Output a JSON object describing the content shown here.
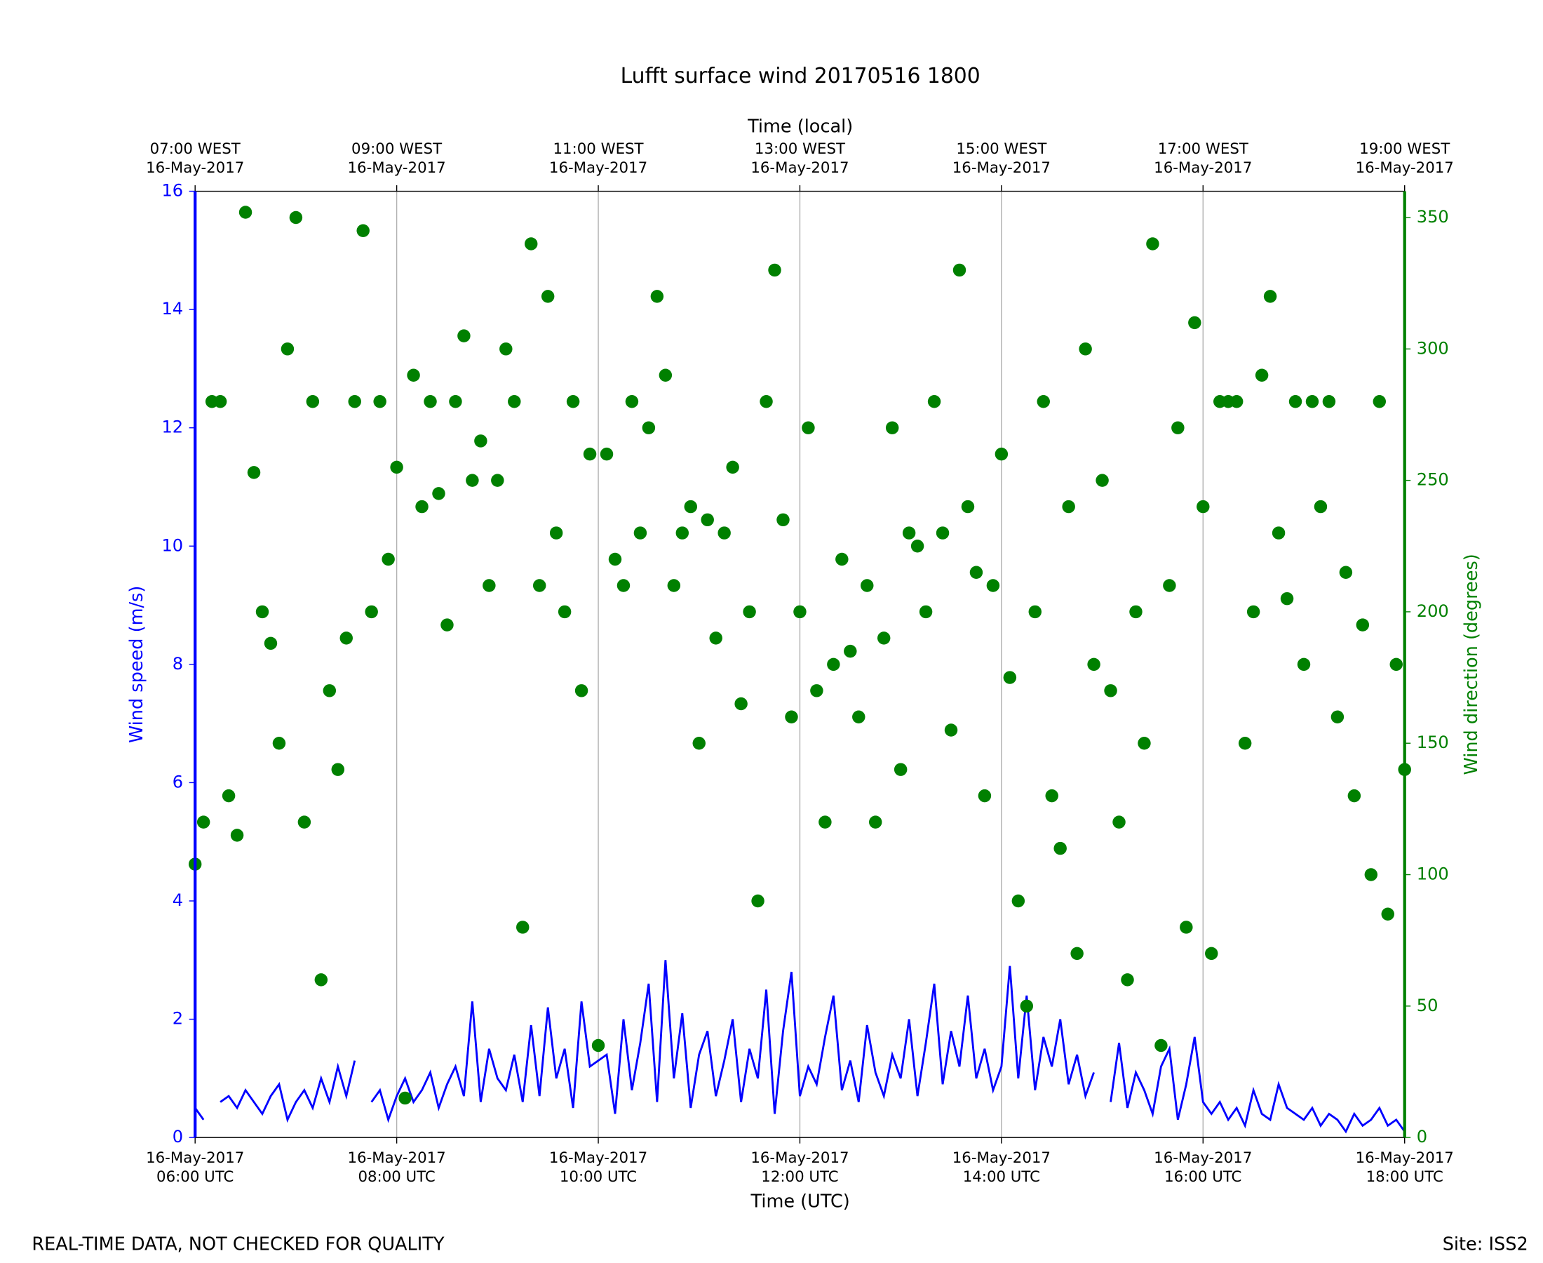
{
  "chart_data": {
    "type": "line",
    "title": "Lufft surface wind 20170516 1800",
    "xlabel": "Time (UTC)",
    "x2label": "Time (local)",
    "ylabel": "Wind speed (m/s)",
    "y2label": "Wind direction (degrees)",
    "footer_left": "REAL-TIME DATA, NOT CHECKED FOR QUALITY",
    "footer_right": "Site: ISS2",
    "grid": true,
    "xlim": [
      "2017-05-16 06:00",
      "2017-05-16 18:00"
    ],
    "xticks": [
      {
        "value": "2017-05-16 06:00",
        "label": [
          "16-May-2017",
          "06:00 UTC"
        ]
      },
      {
        "value": "2017-05-16 08:00",
        "label": [
          "16-May-2017",
          "08:00 UTC"
        ]
      },
      {
        "value": "2017-05-16 10:00",
        "label": [
          "16-May-2017",
          "10:00 UTC"
        ]
      },
      {
        "value": "2017-05-16 12:00",
        "label": [
          "16-May-2017",
          "12:00 UTC"
        ]
      },
      {
        "value": "2017-05-16 14:00",
        "label": [
          "16-May-2017",
          "14:00 UTC"
        ]
      },
      {
        "value": "2017-05-16 16:00",
        "label": [
          "16-May-2017",
          "16:00 UTC"
        ]
      },
      {
        "value": "2017-05-16 18:00",
        "label": [
          "16-May-2017",
          "18:00 UTC"
        ]
      }
    ],
    "x2ticks": [
      {
        "value": "2017-05-16 06:00",
        "label": [
          "07:00 WEST",
          "16-May-2017"
        ]
      },
      {
        "value": "2017-05-16 08:00",
        "label": [
          "09:00 WEST",
          "16-May-2017"
        ]
      },
      {
        "value": "2017-05-16 10:00",
        "label": [
          "11:00 WEST",
          "16-May-2017"
        ]
      },
      {
        "value": "2017-05-16 12:00",
        "label": [
          "13:00 WEST",
          "16-May-2017"
        ]
      },
      {
        "value": "2017-05-16 14:00",
        "label": [
          "15:00 WEST",
          "16-May-2017"
        ]
      },
      {
        "value": "2017-05-16 16:00",
        "label": [
          "17:00 WEST",
          "16-May-2017"
        ]
      },
      {
        "value": "2017-05-16 18:00",
        "label": [
          "19:00 WEST",
          "16-May-2017"
        ]
      }
    ],
    "ylim": [
      0,
      16
    ],
    "yticks": [
      0,
      2,
      4,
      6,
      8,
      10,
      12,
      14,
      16
    ],
    "y2lim": [
      0,
      360
    ],
    "y2ticks": [
      0,
      50,
      100,
      150,
      200,
      250,
      300,
      350
    ],
    "ycolor": "#0000ff",
    "y2color": "#008000",
    "x": [
      "2017-05-16 06:00",
      "2017-05-16 06:05",
      "2017-05-16 06:10",
      "2017-05-16 06:15",
      "2017-05-16 06:20",
      "2017-05-16 06:25",
      "2017-05-16 06:30",
      "2017-05-16 06:35",
      "2017-05-16 06:40",
      "2017-05-16 06:45",
      "2017-05-16 06:50",
      "2017-05-16 06:55",
      "2017-05-16 07:00",
      "2017-05-16 07:05",
      "2017-05-16 07:10",
      "2017-05-16 07:15",
      "2017-05-16 07:20",
      "2017-05-16 07:25",
      "2017-05-16 07:30",
      "2017-05-16 07:35",
      "2017-05-16 07:40",
      "2017-05-16 07:45",
      "2017-05-16 07:50",
      "2017-05-16 07:55",
      "2017-05-16 08:00",
      "2017-05-16 08:05",
      "2017-05-16 08:10",
      "2017-05-16 08:15",
      "2017-05-16 08:20",
      "2017-05-16 08:25",
      "2017-05-16 08:30",
      "2017-05-16 08:35",
      "2017-05-16 08:40",
      "2017-05-16 08:45",
      "2017-05-16 08:50",
      "2017-05-16 08:55",
      "2017-05-16 09:00",
      "2017-05-16 09:05",
      "2017-05-16 09:10",
      "2017-05-16 09:15",
      "2017-05-16 09:20",
      "2017-05-16 09:25",
      "2017-05-16 09:30",
      "2017-05-16 09:35",
      "2017-05-16 09:40",
      "2017-05-16 09:45",
      "2017-05-16 09:50",
      "2017-05-16 09:55",
      "2017-05-16 10:00",
      "2017-05-16 10:05",
      "2017-05-16 10:10",
      "2017-05-16 10:15",
      "2017-05-16 10:20",
      "2017-05-16 10:25",
      "2017-05-16 10:30",
      "2017-05-16 10:35",
      "2017-05-16 10:40",
      "2017-05-16 10:45",
      "2017-05-16 10:50",
      "2017-05-16 10:55",
      "2017-05-16 11:00",
      "2017-05-16 11:05",
      "2017-05-16 11:10",
      "2017-05-16 11:15",
      "2017-05-16 11:20",
      "2017-05-16 11:25",
      "2017-05-16 11:30",
      "2017-05-16 11:35",
      "2017-05-16 11:40",
      "2017-05-16 11:45",
      "2017-05-16 11:50",
      "2017-05-16 11:55",
      "2017-05-16 12:00",
      "2017-05-16 12:05",
      "2017-05-16 12:10",
      "2017-05-16 12:15",
      "2017-05-16 12:20",
      "2017-05-16 12:25",
      "2017-05-16 12:30",
      "2017-05-16 12:35",
      "2017-05-16 12:40",
      "2017-05-16 12:45",
      "2017-05-16 12:50",
      "2017-05-16 12:55",
      "2017-05-16 13:00",
      "2017-05-16 13:05",
      "2017-05-16 13:10",
      "2017-05-16 13:15",
      "2017-05-16 13:20",
      "2017-05-16 13:25",
      "2017-05-16 13:30",
      "2017-05-16 13:35",
      "2017-05-16 13:40",
      "2017-05-16 13:45",
      "2017-05-16 13:50",
      "2017-05-16 13:55",
      "2017-05-16 14:00",
      "2017-05-16 14:05",
      "2017-05-16 14:10",
      "2017-05-16 14:15",
      "2017-05-16 14:20",
      "2017-05-16 14:25",
      "2017-05-16 14:30",
      "2017-05-16 14:35",
      "2017-05-16 14:40",
      "2017-05-16 14:45",
      "2017-05-16 14:50",
      "2017-05-16 14:55",
      "2017-05-16 15:00",
      "2017-05-16 15:05",
      "2017-05-16 15:10",
      "2017-05-16 15:15",
      "2017-05-16 15:20",
      "2017-05-16 15:25",
      "2017-05-16 15:30",
      "2017-05-16 15:35",
      "2017-05-16 15:40",
      "2017-05-16 15:45",
      "2017-05-16 15:50",
      "2017-05-16 15:55",
      "2017-05-16 16:00",
      "2017-05-16 16:05",
      "2017-05-16 16:10",
      "2017-05-16 16:15",
      "2017-05-16 16:20",
      "2017-05-16 16:25",
      "2017-05-16 16:30",
      "2017-05-16 16:35",
      "2017-05-16 16:40",
      "2017-05-16 16:45",
      "2017-05-16 16:50",
      "2017-05-16 16:55",
      "2017-05-16 17:00",
      "2017-05-16 17:05",
      "2017-05-16 17:10",
      "2017-05-16 17:15",
      "2017-05-16 17:20",
      "2017-05-16 17:25",
      "2017-05-16 17:30",
      "2017-05-16 17:35",
      "2017-05-16 17:40",
      "2017-05-16 17:45",
      "2017-05-16 17:50",
      "2017-05-16 17:55",
      "2017-05-16 18:00"
    ],
    "series": [
      {
        "name": "Wind speed",
        "type": "line",
        "axis": "y",
        "color": "#0000ff",
        "values": [
          0.5,
          0.3,
          null,
          0.6,
          0.7,
          0.5,
          0.8,
          0.6,
          0.4,
          0.7,
          0.9,
          0.3,
          0.6,
          0.8,
          0.5,
          1.0,
          0.6,
          1.2,
          0.7,
          1.3,
          null,
          0.6,
          0.8,
          0.3,
          0.7,
          1.0,
          0.6,
          0.8,
          1.1,
          0.5,
          0.9,
          1.2,
          0.7,
          2.3,
          0.6,
          1.5,
          1.0,
          0.8,
          1.4,
          0.6,
          1.9,
          0.7,
          2.2,
          1.0,
          1.5,
          0.5,
          2.3,
          1.2,
          1.3,
          1.4,
          0.4,
          2.0,
          0.8,
          1.6,
          2.6,
          0.6,
          3.0,
          1.0,
          2.1,
          0.5,
          1.4,
          1.8,
          0.7,
          1.3,
          2.0,
          0.6,
          1.5,
          1.0,
          2.5,
          0.4,
          1.8,
          2.8,
          0.7,
          1.2,
          0.9,
          1.7,
          2.4,
          0.8,
          1.3,
          0.6,
          1.9,
          1.1,
          0.7,
          1.4,
          1.0,
          2.0,
          0.7,
          1.6,
          2.6,
          0.9,
          1.8,
          1.2,
          2.4,
          1.0,
          1.5,
          0.8,
          1.2,
          2.9,
          1.0,
          2.4,
          0.8,
          1.7,
          1.2,
          2.0,
          0.9,
          1.4,
          0.7,
          1.1,
          null,
          0.6,
          1.6,
          0.5,
          1.1,
          0.8,
          0.4,
          1.2,
          1.5,
          0.3,
          0.9,
          1.7,
          0.6,
          0.4,
          0.6,
          0.3,
          0.5,
          0.2,
          0.8,
          0.4,
          0.3,
          0.9,
          0.5,
          0.4,
          0.3,
          0.5,
          0.2,
          0.4,
          0.3,
          0.1,
          0.4,
          0.2,
          0.3,
          0.5,
          0.2,
          0.3,
          0.1
        ]
      },
      {
        "name": "Wind direction",
        "type": "scatter",
        "axis": "y2",
        "color": "#008000",
        "values": [
          104,
          120,
          280,
          280,
          130,
          115,
          352,
          253,
          200,
          188,
          150,
          300,
          350,
          120,
          280,
          60,
          170,
          140,
          190,
          280,
          345,
          200,
          280,
          220,
          255,
          15,
          290,
          240,
          280,
          245,
          195,
          280,
          305,
          250,
          265,
          210,
          250,
          300,
          280,
          80,
          340,
          210,
          320,
          230,
          200,
          280,
          170,
          260,
          35,
          260,
          220,
          210,
          280,
          230,
          270,
          320,
          290,
          210,
          230,
          240,
          150,
          235,
          190,
          230,
          255,
          165,
          200,
          90,
          280,
          330,
          235,
          160,
          200,
          270,
          170,
          120,
          180,
          220,
          185,
          160,
          210,
          120,
          190,
          270,
          140,
          230,
          225,
          200,
          280,
          230,
          155,
          330,
          240,
          215,
          130,
          210,
          260,
          175,
          90,
          50,
          200,
          280,
          130,
          110,
          240,
          70,
          300,
          180,
          250,
          170,
          120,
          60,
          200,
          150,
          340,
          35,
          210,
          270,
          80,
          310,
          240,
          70,
          280,
          280,
          280,
          150,
          200,
          290,
          320,
          230,
          205,
          280,
          180,
          280,
          240,
          280,
          160,
          215,
          130,
          195,
          100,
          280,
          85,
          180,
          140
        ]
      }
    ]
  }
}
